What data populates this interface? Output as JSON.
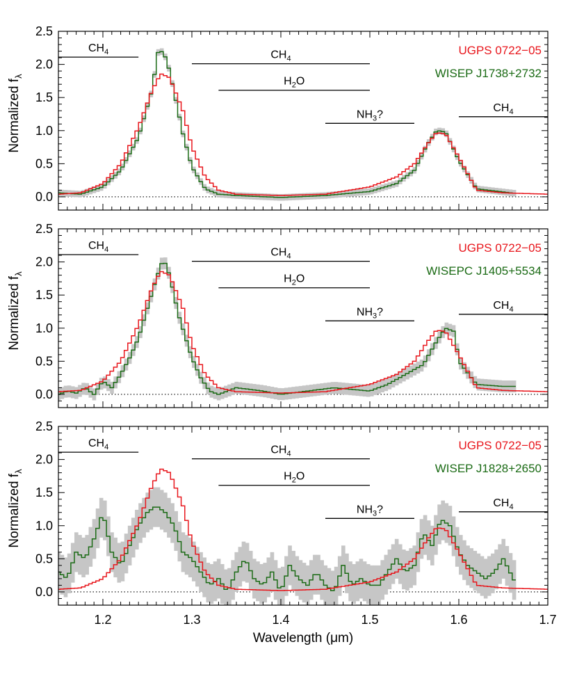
{
  "figure": {
    "xlabel": "Wavelength (μm)",
    "ylabel_main": "Normalized f",
    "ylabel_sub": "λ"
  },
  "chart_data": [
    {
      "type": "line",
      "panel": "top",
      "xlim": [
        1.15,
        1.7
      ],
      "ylim": [
        -0.2,
        2.5
      ],
      "xticks": [
        1.2,
        1.3,
        1.4,
        1.5,
        1.6,
        1.7
      ],
      "yticks": [
        0.0,
        0.5,
        1.0,
        1.5,
        2.0,
        2.5
      ],
      "x_tick_labels_shown": false,
      "zero_line": "dotted",
      "annotations": [
        {
          "label": "CH",
          "sub": "4",
          "x_start": 1.15,
          "x_end": 1.24,
          "y": 2.11
        },
        {
          "label": "CH",
          "sub": "4",
          "x_start": 1.3,
          "x_end": 1.5,
          "y": 2.01
        },
        {
          "label": "H",
          "sub": "2",
          "suffix": "O",
          "x_start": 1.33,
          "x_end": 1.5,
          "y": 1.61
        },
        {
          "label": "NH",
          "sub": "3",
          "suffix": "?",
          "x_start": 1.45,
          "x_end": 1.55,
          "y": 1.11
        },
        {
          "label": "CH",
          "sub": "4",
          "x_start": 1.6,
          "x_end": 1.7,
          "y": 1.21
        }
      ],
      "legend": {
        "placement": "top-right",
        "entries": [
          {
            "text": "UGPS 0722−05",
            "color": "#e8151b"
          },
          {
            "text": "WISEP J1738+2732",
            "color": "#1a6a14"
          }
        ]
      },
      "series": [
        {
          "name": "UGPS 0722−05",
          "color": "#e8151b",
          "step": true,
          "band": false,
          "x": [
            1.15,
            1.175,
            1.2,
            1.22,
            1.24,
            1.255,
            1.265,
            1.275,
            1.29,
            1.3,
            1.315,
            1.33,
            1.35,
            1.4,
            1.45,
            1.5,
            1.53,
            1.55,
            1.565,
            1.575,
            1.585,
            1.6,
            1.62,
            1.65,
            1.7
          ],
          "y": [
            0.04,
            0.06,
            0.2,
            0.5,
            1.05,
            1.6,
            1.86,
            1.8,
            1.3,
            0.75,
            0.3,
            0.1,
            0.04,
            0.02,
            0.04,
            0.15,
            0.3,
            0.5,
            0.8,
            0.97,
            0.95,
            0.6,
            0.1,
            0.06,
            0.04
          ]
        },
        {
          "name": "WISEP J1738+2732",
          "color": "#1a6a14",
          "step": true,
          "band": true,
          "band_halfwidth": 0.05,
          "x": [
            1.15,
            1.175,
            1.2,
            1.22,
            1.24,
            1.255,
            1.262,
            1.268,
            1.275,
            1.29,
            1.3,
            1.315,
            1.33,
            1.35,
            1.4,
            1.45,
            1.5,
            1.53,
            1.55,
            1.565,
            1.575,
            1.585,
            1.6,
            1.62,
            1.665
          ],
          "y": [
            0.06,
            0.04,
            0.15,
            0.4,
            0.9,
            1.6,
            2.18,
            2.2,
            1.9,
            0.95,
            0.45,
            0.12,
            0.04,
            0.02,
            -0.01,
            0.02,
            0.08,
            0.2,
            0.4,
            0.8,
            1.0,
            0.98,
            0.55,
            0.12,
            0.05
          ]
        }
      ]
    },
    {
      "type": "line",
      "panel": "middle",
      "xlim": [
        1.15,
        1.7
      ],
      "ylim": [
        -0.2,
        2.5
      ],
      "xticks": [
        1.2,
        1.3,
        1.4,
        1.5,
        1.6,
        1.7
      ],
      "yticks": [
        0.0,
        0.5,
        1.0,
        1.5,
        2.0,
        2.5
      ],
      "x_tick_labels_shown": false,
      "zero_line": "dotted",
      "annotations": [
        {
          "label": "CH",
          "sub": "4",
          "x_start": 1.15,
          "x_end": 1.24,
          "y": 2.11
        },
        {
          "label": "CH",
          "sub": "4",
          "x_start": 1.3,
          "x_end": 1.5,
          "y": 2.01
        },
        {
          "label": "H",
          "sub": "2",
          "suffix": "O",
          "x_start": 1.33,
          "x_end": 1.5,
          "y": 1.61
        },
        {
          "label": "NH",
          "sub": "3",
          "suffix": "?",
          "x_start": 1.45,
          "x_end": 1.55,
          "y": 1.11
        },
        {
          "label": "CH",
          "sub": "4",
          "x_start": 1.6,
          "x_end": 1.7,
          "y": 1.21
        }
      ],
      "legend": {
        "placement": "top-right",
        "entries": [
          {
            "text": "UGPS 0722−05",
            "color": "#e8151b"
          },
          {
            "text": "WISEPC J1405+5534",
            "color": "#1a6a14"
          }
        ]
      },
      "series": [
        {
          "name": "UGPS 0722−05",
          "color": "#e8151b",
          "step": true,
          "band": false,
          "x": [
            1.15,
            1.175,
            1.2,
            1.22,
            1.24,
            1.255,
            1.265,
            1.275,
            1.29,
            1.3,
            1.315,
            1.33,
            1.35,
            1.4,
            1.45,
            1.5,
            1.53,
            1.55,
            1.565,
            1.575,
            1.585,
            1.6,
            1.62,
            1.65,
            1.7
          ],
          "y": [
            0.04,
            0.06,
            0.2,
            0.5,
            1.05,
            1.6,
            1.86,
            1.8,
            1.3,
            0.75,
            0.3,
            0.1,
            0.04,
            0.02,
            0.04,
            0.15,
            0.3,
            0.5,
            0.8,
            0.97,
            0.95,
            0.6,
            0.1,
            0.06,
            0.04
          ]
        },
        {
          "name": "WISEPC J1405+5534",
          "color": "#1a6a14",
          "step": true,
          "band": true,
          "band_halfwidth": 0.09,
          "x": [
            1.15,
            1.16,
            1.17,
            1.18,
            1.19,
            1.2,
            1.21,
            1.22,
            1.23,
            1.24,
            1.25,
            1.26,
            1.268,
            1.275,
            1.285,
            1.3,
            1.31,
            1.32,
            1.33,
            1.35,
            1.38,
            1.4,
            1.43,
            1.46,
            1.5,
            1.52,
            1.54,
            1.56,
            1.575,
            1.585,
            1.595,
            1.6,
            1.62,
            1.65,
            1.665
          ],
          "y": [
            0.0,
            0.05,
            0.02,
            0.1,
            0.0,
            0.2,
            0.1,
            0.3,
            0.55,
            0.85,
            1.3,
            1.75,
            2.05,
            1.8,
            1.2,
            0.55,
            0.25,
            0.05,
            0.0,
            0.1,
            0.05,
            0.0,
            0.05,
            0.1,
            0.05,
            0.15,
            0.3,
            0.45,
            0.8,
            1.0,
            0.95,
            0.5,
            0.15,
            0.12,
            0.12
          ]
        }
      ]
    },
    {
      "type": "line",
      "panel": "bottom",
      "xlim": [
        1.15,
        1.7
      ],
      "ylim": [
        -0.2,
        2.5
      ],
      "xticks": [
        1.2,
        1.3,
        1.4,
        1.5,
        1.6,
        1.7
      ],
      "yticks": [
        0.0,
        0.5,
        1.0,
        1.5,
        2.0,
        2.5
      ],
      "x_tick_labels_shown": true,
      "zero_line": "dotted",
      "annotations": [
        {
          "label": "CH",
          "sub": "4",
          "x_start": 1.15,
          "x_end": 1.24,
          "y": 2.11
        },
        {
          "label": "CH",
          "sub": "4",
          "x_start": 1.3,
          "x_end": 1.5,
          "y": 2.01
        },
        {
          "label": "H",
          "sub": "2",
          "suffix": "O",
          "x_start": 1.33,
          "x_end": 1.5,
          "y": 1.61
        },
        {
          "label": "NH",
          "sub": "3",
          "suffix": "?",
          "x_start": 1.45,
          "x_end": 1.55,
          "y": 1.11
        },
        {
          "label": "CH",
          "sub": "4",
          "x_start": 1.6,
          "x_end": 1.7,
          "y": 1.21
        }
      ],
      "legend": {
        "placement": "top-right",
        "entries": [
          {
            "text": "UGPS 0722−05",
            "color": "#e8151b"
          },
          {
            "text": "WISEP J1828+2650",
            "color": "#1a6a14"
          }
        ]
      },
      "series": [
        {
          "name": "UGPS 0722−05",
          "color": "#e8151b",
          "step": true,
          "band": false,
          "x": [
            1.15,
            1.175,
            1.2,
            1.22,
            1.24,
            1.255,
            1.265,
            1.275,
            1.29,
            1.3,
            1.315,
            1.33,
            1.35,
            1.4,
            1.45,
            1.5,
            1.53,
            1.55,
            1.565,
            1.575,
            1.585,
            1.6,
            1.62,
            1.65,
            1.7
          ],
          "y": [
            0.04,
            0.06,
            0.2,
            0.5,
            1.05,
            1.6,
            1.86,
            1.8,
            1.3,
            0.75,
            0.3,
            0.1,
            0.04,
            0.02,
            0.04,
            0.15,
            0.3,
            0.5,
            0.8,
            0.97,
            0.95,
            0.6,
            0.1,
            0.06,
            0.04
          ]
        },
        {
          "name": "WISEP J1828+2650",
          "color": "#1a6a14",
          "step": true,
          "band": true,
          "band_halfwidth": 0.3,
          "x": [
            1.15,
            1.16,
            1.17,
            1.18,
            1.19,
            1.2,
            1.21,
            1.22,
            1.23,
            1.24,
            1.25,
            1.26,
            1.27,
            1.28,
            1.29,
            1.3,
            1.31,
            1.32,
            1.33,
            1.34,
            1.35,
            1.36,
            1.37,
            1.38,
            1.39,
            1.4,
            1.41,
            1.42,
            1.43,
            1.44,
            1.45,
            1.46,
            1.47,
            1.48,
            1.49,
            1.5,
            1.51,
            1.52,
            1.53,
            1.54,
            1.55,
            1.56,
            1.57,
            1.58,
            1.59,
            1.6,
            1.61,
            1.62,
            1.63,
            1.64,
            1.65,
            1.665
          ],
          "y": [
            0.3,
            0.2,
            0.6,
            0.5,
            0.8,
            1.2,
            0.6,
            0.4,
            0.7,
            1.0,
            1.2,
            1.3,
            1.2,
            1.0,
            0.6,
            0.5,
            0.3,
            0.1,
            0.2,
            0.0,
            0.3,
            0.5,
            0.2,
            0.1,
            0.3,
            0.0,
            0.4,
            0.2,
            0.1,
            0.3,
            0.1,
            0.0,
            0.4,
            0.1,
            0.2,
            0.1,
            0.1,
            0.3,
            0.5,
            0.3,
            0.4,
            0.9,
            0.7,
            1.1,
            1.0,
            0.6,
            0.4,
            0.3,
            0.2,
            0.3,
            0.5,
            0.1
          ]
        }
      ]
    }
  ]
}
